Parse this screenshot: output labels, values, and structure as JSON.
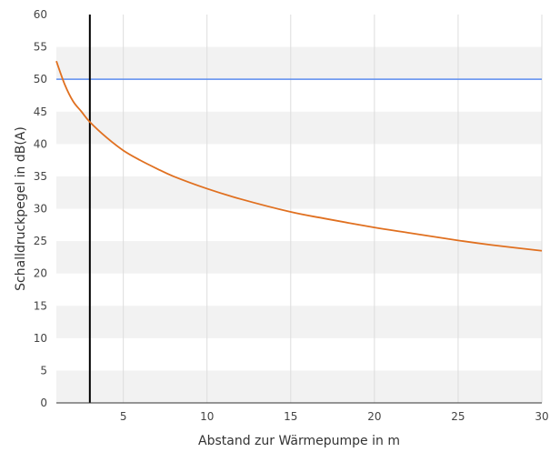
{
  "chart_data": {
    "type": "line",
    "xlabel": "Abstand zur Wärmepumpe in m",
    "ylabel": "Schalldruckpegel in dB(A)",
    "xlim": [
      1,
      30
    ],
    "ylim": [
      0,
      60
    ],
    "x_ticks": [
      5,
      10,
      15,
      20,
      25,
      30
    ],
    "y_ticks": [
      0,
      5,
      10,
      15,
      20,
      25,
      30,
      35,
      40,
      45,
      50,
      55,
      60
    ],
    "grid": true,
    "legend": "none",
    "series": [
      {
        "color": "#e07020",
        "x": [
          1,
          1.5,
          2,
          2.5,
          3,
          4,
          5,
          6,
          7,
          8,
          10,
          12,
          15,
          17,
          20,
          22,
          25,
          27,
          30
        ],
        "y": [
          52.8,
          49.2,
          46.6,
          45.0,
          43.4,
          41.0,
          39.0,
          37.5,
          36.2,
          35.0,
          33.1,
          31.5,
          29.5,
          28.5,
          27.1,
          26.3,
          25.1,
          24.4,
          23.5
        ]
      }
    ],
    "reference_lines": [
      {
        "orientation": "horizontal",
        "value": 50,
        "color": "#5b8def"
      },
      {
        "orientation": "vertical",
        "value": 3,
        "color": "#000000"
      }
    ]
  }
}
